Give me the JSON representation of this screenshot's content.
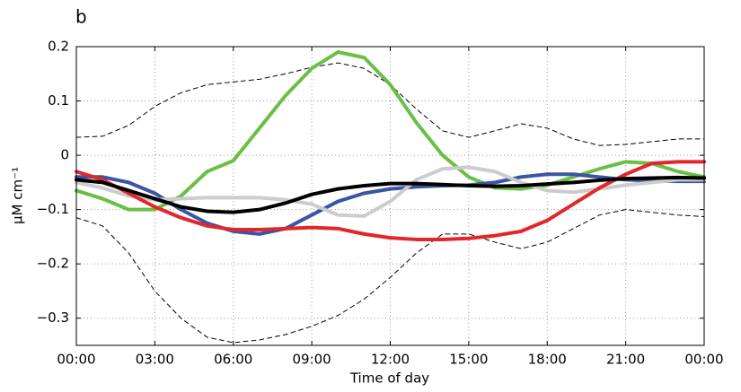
{
  "chart_data": {
    "type": "line",
    "panel_label": "b",
    "xlabel": "Time of day",
    "ylabel": "μM cm⁻¹",
    "x": [
      0,
      1,
      2,
      3,
      4,
      5,
      6,
      7,
      8,
      9,
      10,
      11,
      12,
      13,
      14,
      15,
      16,
      17,
      18,
      19,
      20,
      21,
      22,
      23,
      24
    ],
    "xlim": [
      0,
      24
    ],
    "xticks": [
      {
        "value": 0,
        "label": "00:00"
      },
      {
        "value": 3,
        "label": "03:00"
      },
      {
        "value": 6,
        "label": "06:00"
      },
      {
        "value": 9,
        "label": "09:00"
      },
      {
        "value": 12,
        "label": "12:00"
      },
      {
        "value": 15,
        "label": "15:00"
      },
      {
        "value": 18,
        "label": "18:00"
      },
      {
        "value": 21,
        "label": "21:00"
      },
      {
        "value": 24,
        "label": "00:00"
      }
    ],
    "ylim": [
      -0.35,
      0.2
    ],
    "yticks": [
      0.2,
      0.1,
      0,
      {
        "value": -0.1,
        "label": "−0.1"
      },
      {
        "value": -0.2,
        "label": "−0.2"
      },
      {
        "value": -0.3,
        "label": "−0.3"
      }
    ],
    "grid": true,
    "series": [
      {
        "color": "#000000",
        "linestyle": "dashed",
        "values": [
          0.033,
          0.035,
          0.055,
          0.09,
          0.115,
          0.13,
          0.135,
          0.14,
          0.15,
          0.162,
          0.17,
          0.16,
          0.13,
          0.085,
          0.045,
          0.033,
          0.045,
          0.058,
          0.05,
          0.03,
          0.018,
          0.02,
          0.025,
          0.03,
          0.03
        ]
      },
      {
        "color": "#000000",
        "linestyle": "dashed",
        "values": [
          -0.115,
          -0.13,
          -0.18,
          -0.25,
          -0.3,
          -0.335,
          -0.345,
          -0.34,
          -0.33,
          -0.315,
          -0.295,
          -0.265,
          -0.225,
          -0.18,
          -0.145,
          -0.145,
          -0.16,
          -0.172,
          -0.16,
          -0.135,
          -0.11,
          -0.1,
          -0.105,
          -0.11,
          -0.113
        ]
      },
      {
        "color": "#6abf45",
        "linestyle": "solid",
        "values": [
          -0.065,
          -0.08,
          -0.1,
          -0.1,
          -0.075,
          -0.03,
          -0.01,
          0.05,
          0.11,
          0.16,
          0.19,
          0.18,
          0.13,
          0.06,
          0.0,
          -0.04,
          -0.06,
          -0.062,
          -0.055,
          -0.04,
          -0.025,
          -0.012,
          -0.015,
          -0.03,
          -0.04
        ]
      },
      {
        "color": "#3a55a4",
        "linestyle": "solid",
        "values": [
          -0.04,
          -0.04,
          -0.05,
          -0.07,
          -0.1,
          -0.125,
          -0.14,
          -0.145,
          -0.135,
          -0.11,
          -0.085,
          -0.07,
          -0.062,
          -0.058,
          -0.056,
          -0.055,
          -0.05,
          -0.04,
          -0.035,
          -0.035,
          -0.04,
          -0.045,
          -0.047,
          -0.048,
          -0.048
        ]
      },
      {
        "color": "#cccccc",
        "linestyle": "solid",
        "values": [
          -0.05,
          -0.06,
          -0.075,
          -0.082,
          -0.08,
          -0.078,
          -0.078,
          -0.078,
          -0.082,
          -0.09,
          -0.11,
          -0.112,
          -0.085,
          -0.045,
          -0.025,
          -0.022,
          -0.03,
          -0.05,
          -0.065,
          -0.068,
          -0.062,
          -0.055,
          -0.05,
          -0.045,
          -0.045
        ]
      },
      {
        "color": "#e3262a",
        "linestyle": "solid",
        "values": [
          -0.03,
          -0.045,
          -0.07,
          -0.095,
          -0.115,
          -0.13,
          -0.137,
          -0.137,
          -0.135,
          -0.133,
          -0.135,
          -0.145,
          -0.152,
          -0.155,
          -0.155,
          -0.153,
          -0.148,
          -0.14,
          -0.12,
          -0.09,
          -0.06,
          -0.035,
          -0.015,
          -0.012,
          -0.012
        ]
      },
      {
        "color": "#000000",
        "linestyle": "solid",
        "values": [
          -0.045,
          -0.05,
          -0.065,
          -0.08,
          -0.095,
          -0.103,
          -0.105,
          -0.1,
          -0.088,
          -0.072,
          -0.062,
          -0.056,
          -0.052,
          -0.052,
          -0.054,
          -0.056,
          -0.057,
          -0.056,
          -0.053,
          -0.05,
          -0.046,
          -0.043,
          -0.042,
          -0.041,
          -0.042
        ]
      }
    ]
  }
}
